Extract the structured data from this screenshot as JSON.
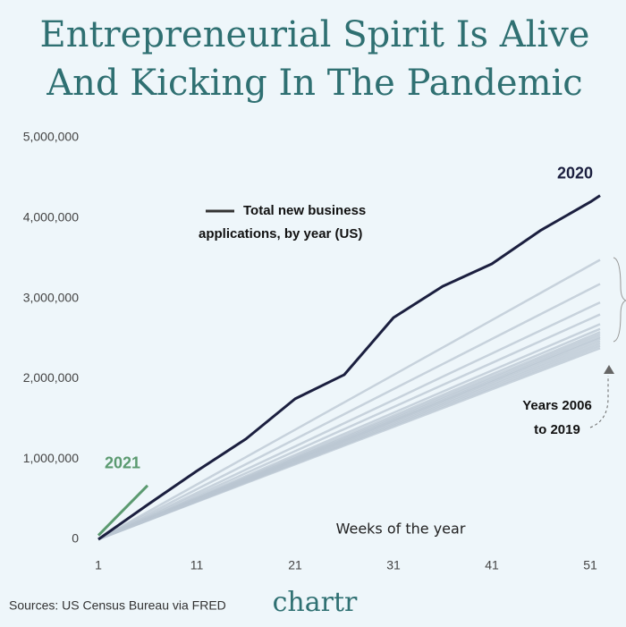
{
  "chart_data": {
    "type": "line",
    "title": [
      "Entrepreneurial Spirit Is Alive",
      "And Kicking In The Pandemic"
    ],
    "legend_text": [
      "Total new business",
      "applications, by year (US)"
    ],
    "range_note": [
      "Years 2006",
      "to 2019"
    ],
    "x_label": "Weeks of the year",
    "source": "Sources: US Census Bureau via FRED",
    "brand": "chartr",
    "x": [
      1,
      6,
      11,
      16,
      21,
      26,
      31,
      36,
      41,
      46,
      51,
      52
    ],
    "xlim": [
      1,
      52
    ],
    "xticks": [
      1,
      11,
      21,
      31,
      41,
      51
    ],
    "ylim": [
      0,
      5000000
    ],
    "yticks": [
      0,
      {
        "value": 1000000,
        "label": "1,000,000"
      },
      {
        "value": 2000000,
        "label": "2,000,000"
      },
      {
        "value": 3000000,
        "label": "3,000,000"
      },
      {
        "value": 4000000,
        "label": "4,000,000"
      },
      {
        "value": 5000000,
        "label": "5,000,000"
      }
    ],
    "series": [
      {
        "color": "#b9c6d2",
        "values": [
          0,
          341000,
          682000,
          1024000,
          1365000,
          1706000,
          2047000,
          2388000,
          2729000,
          3071000,
          3412000,
          3480000
        ]
      },
      {
        "color": "#b9c6d2",
        "values": [
          0,
          312000,
          624000,
          935000,
          1247000,
          1559000,
          1871000,
          2182000,
          2494000,
          2806000,
          3118000,
          3180000
        ]
      },
      {
        "color": "#b9c6d2",
        "values": [
          0,
          289000,
          578000,
          868000,
          1157000,
          1446000,
          1735000,
          2025000,
          2314000,
          2603000,
          2892000,
          2950000
        ]
      },
      {
        "color": "#b9c6d2",
        "values": [
          0,
          275000,
          549000,
          824000,
          1098000,
          1373000,
          1647000,
          1922000,
          2196000,
          2471000,
          2745000,
          2800000
        ]
      },
      {
        "color": "#b9c6d2",
        "values": [
          0,
          263000,
          525000,
          788000,
          1051000,
          1314000,
          1576000,
          1839000,
          2102000,
          2365000,
          2627000,
          2680000
        ]
      },
      {
        "color": "#b9c6d2",
        "values": [
          0,
          257000,
          514000,
          771000,
          1027000,
          1284000,
          1541000,
          1798000,
          2055000,
          2312000,
          2569000,
          2620000
        ]
      },
      {
        "color": "#b9c6d2",
        "values": [
          0,
          253000,
          506000,
          759000,
          1012000,
          1265000,
          1518000,
          1771000,
          2024000,
          2276000,
          2529000,
          2580000
        ]
      },
      {
        "color": "#b9c6d2",
        "values": [
          0,
          250000,
          500000,
          750000,
          1000000,
          1250000,
          1500000,
          1750000,
          2000000,
          2250000,
          2500000,
          2550000
        ]
      },
      {
        "color": "#b9c6d2",
        "values": [
          0,
          247000,
          494000,
          741000,
          988000,
          1235000,
          1482000,
          1729000,
          1976000,
          2224000,
          2471000,
          2520000
        ]
      },
      {
        "color": "#b9c6d2",
        "values": [
          0,
          245000,
          490000,
          735000,
          980000,
          1225000,
          1471000,
          1716000,
          1961000,
          2206000,
          2451000,
          2500000
        ]
      },
      {
        "color": "#b9c6d2",
        "values": [
          0,
          242000,
          484000,
          726000,
          969000,
          1211000,
          1453000,
          1695000,
          1937000,
          2179000,
          2422000,
          2470000
        ]
      },
      {
        "color": "#b9c6d2",
        "values": [
          0,
          239000,
          478000,
          718000,
          957000,
          1196000,
          1435000,
          1675000,
          1914000,
          2153000,
          2392000,
          2440000
        ]
      },
      {
        "color": "#b9c6d2",
        "values": [
          0,
          236000,
          473000,
          709000,
          945000,
          1181000,
          1418000,
          1654000,
          1890000,
          2126000,
          2363000,
          2410000
        ]
      },
      {
        "color": "#b9c6d2",
        "values": [
          0,
          233000,
          467000,
          700000,
          933000,
          1167000,
          1400000,
          1633000,
          1867000,
          2100000,
          2333000,
          2380000
        ]
      },
      {
        "name": "2020",
        "color": "#1b1f3f",
        "values": [
          0,
          430000,
          850000,
          1250000,
          1750000,
          2050000,
          2760000,
          3150000,
          3430000,
          3850000,
          4200000,
          4280000
        ]
      },
      {
        "name": "2021",
        "color": "#5b9a70",
        "values": [
          50000,
          670000,
          null,
          null,
          null,
          null,
          null,
          null,
          null,
          null,
          null,
          null
        ]
      }
    ]
  }
}
